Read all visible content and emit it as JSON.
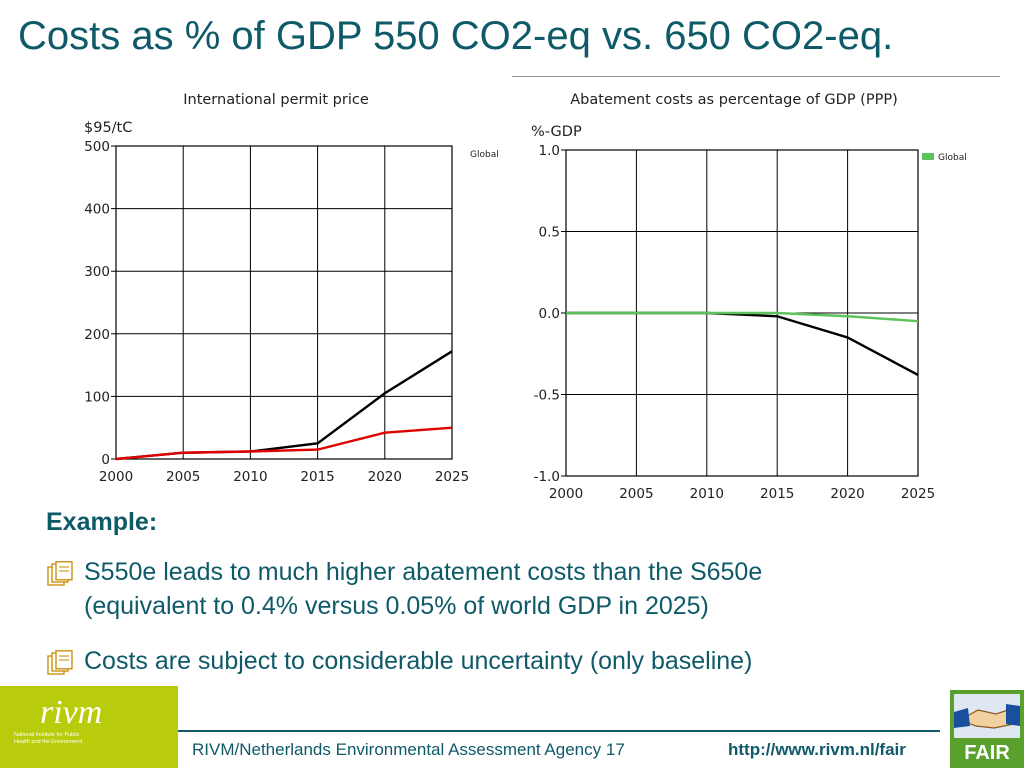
{
  "slide": {
    "title": "Costs as % of GDP 550 CO2-eq vs. 650 CO2-eq.",
    "example_label": "Example:",
    "bullets": [
      {
        "icon": "notes-icon",
        "lines": [
          "S550e leads to much higher abatement costs than the S650e",
          "(equivalent to 0.4% versus 0.05% of world GDP in 2025)"
        ]
      },
      {
        "icon": "notes-icon",
        "lines": [
          "Costs are subject to considerable uncertainty (only baseline)"
        ]
      }
    ],
    "footer_text": "RIVM/Netherlands Environmental Assessment Agency 17",
    "footer_url": "http://www.rivm.nl/fair",
    "logo_left": "rivm",
    "logo_left_sub": "National Institute for Public Health and the Environment",
    "logo_right": "FAIR",
    "colors": {
      "teal": "#0f5a69",
      "rivm_green": "#b9cc0c",
      "series_black": "#000000",
      "series_red": "#e00000",
      "series_green": "#5cc25c"
    }
  },
  "chart_data": [
    {
      "type": "line",
      "title": "International permit price",
      "ylabel": "$95/tC",
      "x": [
        2000,
        2005,
        2010,
        2015,
        2020,
        2025
      ],
      "xlim": [
        2000,
        2025
      ],
      "ylim": [
        0,
        500
      ],
      "yticks": [
        0,
        100,
        200,
        300,
        400,
        500
      ],
      "legend": [
        "Global"
      ],
      "grid": true,
      "series": [
        {
          "color": "#000000",
          "values": [
            0,
            10,
            12,
            25,
            105,
            172
          ]
        },
        {
          "color": "#e00000",
          "values": [
            0,
            10,
            12,
            15,
            42,
            50
          ]
        }
      ]
    },
    {
      "type": "line",
      "title": "Abatement costs as percentage of GDP (PPP)",
      "ylabel": "%-GDP",
      "x": [
        2000,
        2005,
        2010,
        2015,
        2020,
        2025
      ],
      "xlim": [
        2000,
        2025
      ],
      "ylim": [
        -1.0,
        1.0
      ],
      "yticks": [
        -1.0,
        -0.5,
        0.0,
        0.5,
        1.0
      ],
      "legend": [
        "Global"
      ],
      "grid": true,
      "series": [
        {
          "color": "#000000",
          "values": [
            0,
            0,
            0,
            -0.02,
            -0.15,
            -0.38
          ]
        },
        {
          "color": "#5cc25c",
          "values": [
            0,
            0,
            0,
            0,
            -0.02,
            -0.05
          ]
        }
      ]
    }
  ]
}
